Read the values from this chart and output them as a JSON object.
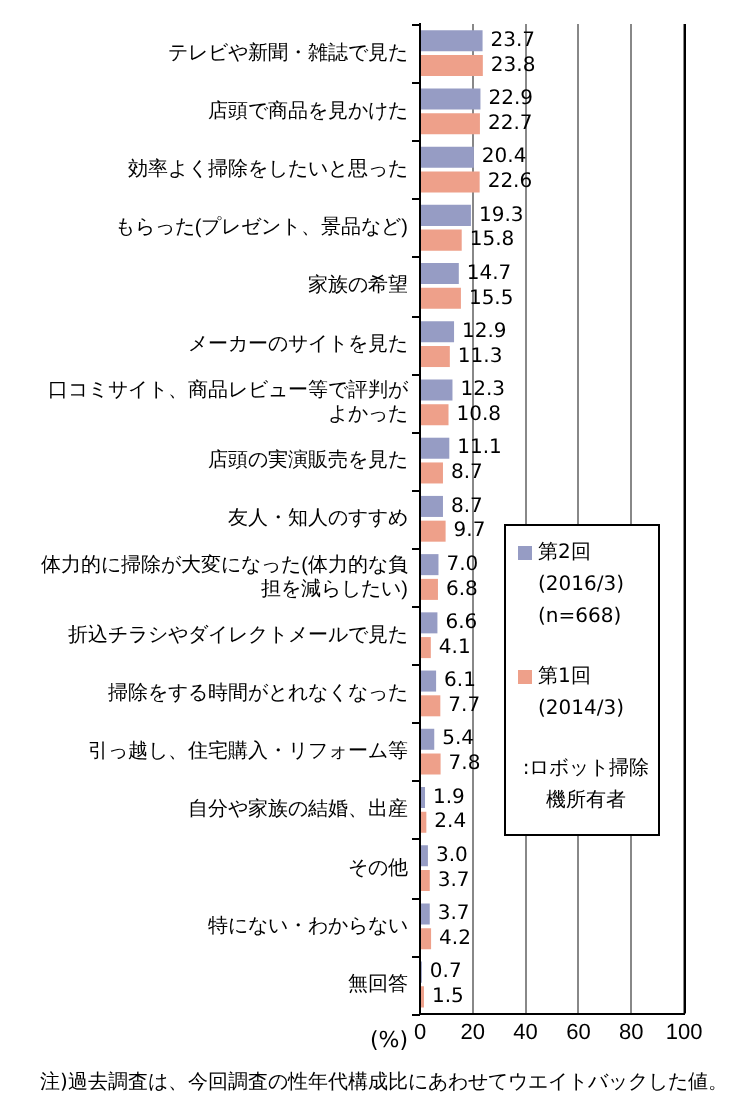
{
  "chart_data": {
    "type": "bar",
    "orientation": "horizontal",
    "categories": [
      "テレビや新聞・雑誌で見た",
      "店頭で商品を見かけた",
      "効率よく掃除をしたいと思った",
      "もらった(プレゼント、景品など)",
      "家族の希望",
      "メーカーのサイトを見た",
      "口コミサイト、商品レビュー等で評判がよかった",
      "店頭の実演販売を見た",
      "友人・知人のすすめ",
      "体力的に掃除が大変になった(体力的な負担を減らしたい)",
      "折込チラシやダイレクトメールで見た",
      "掃除をする時間がとれなくなった",
      "引っ越し、住宅購入・リフォーム等",
      "自分や家族の結婚、出産",
      "その他",
      "特にない・わからない",
      "無回答"
    ],
    "series": [
      {
        "name": "第2回\n(2016/3)\n(n=668)",
        "color": "#969cc4",
        "values": [
          23.7,
          22.9,
          20.4,
          19.3,
          14.7,
          12.9,
          12.3,
          11.1,
          8.7,
          7.0,
          6.6,
          6.1,
          5.4,
          1.9,
          3.0,
          3.7,
          0.7
        ]
      },
      {
        "name": "第1回\n(2014/3)",
        "color": "#eea08a",
        "values": [
          23.8,
          22.7,
          22.6,
          15.8,
          15.5,
          11.3,
          10.8,
          8.7,
          9.7,
          6.8,
          4.1,
          7.7,
          7.8,
          2.4,
          3.7,
          4.2,
          1.5
        ]
      }
    ],
    "value_labels": [
      [
        "23.7",
        "22.9",
        "20.4",
        "19.3",
        "14.7",
        "12.9",
        "12.3",
        "11.1",
        "8.7",
        "7.0",
        "6.6",
        "6.1",
        "5.4",
        "1.9",
        "3.0",
        "3.7",
        "0.7"
      ],
      [
        "23.8",
        "22.7",
        "22.6",
        "15.8",
        "15.5",
        "11.3",
        "10.8",
        "8.7",
        "9.7",
        "6.8",
        "4.1",
        "7.7",
        "7.8",
        "2.4",
        "3.7",
        "4.2",
        "1.5"
      ]
    ],
    "xlabel": "(%)",
    "xlim": [
      0,
      100
    ],
    "xticks": [
      0,
      20,
      40,
      60,
      80,
      100
    ],
    "grid": "x",
    "legend": "right",
    "annotations": [
      ":ロボット掃除機所有者",
      "注)過去調査は、今回調査の性年代構成比にあわせてウエイトバックした値。"
    ]
  }
}
